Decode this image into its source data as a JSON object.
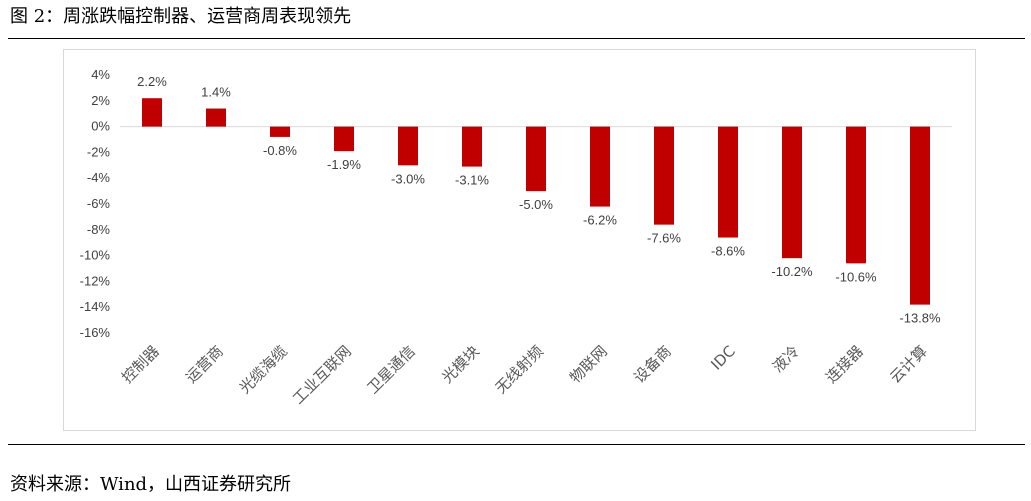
{
  "figure_title": "图 2：周涨跌幅控制器、运营商周表现领先",
  "source_note": "资料来源：Wind，山西证券研究所",
  "colors": {
    "bar": "#c00000",
    "axis": "#d9d9d9",
    "text": "#404040"
  },
  "chart_data": {
    "type": "bar",
    "title": "",
    "xlabel": "",
    "ylabel": "",
    "categories": [
      "控制器",
      "运营商",
      "光缆海缆",
      "工业互联网",
      "卫星通信",
      "光模块",
      "无线射频",
      "物联网",
      "设备商",
      "IDC",
      "液冷",
      "连接器",
      "云计算"
    ],
    "series": [
      {
        "values": [
          2.2,
          1.4,
          -0.8,
          -1.9,
          -3.0,
          -3.1,
          -5.0,
          -6.2,
          -7.6,
          -8.6,
          -10.2,
          -10.6,
          -13.8
        ]
      }
    ],
    "data_labels": [
      "2.2%",
      "1.4%",
      "-0.8%",
      "-1.9%",
      "-3.0%",
      "-3.1%",
      "-5.0%",
      "-6.2%",
      "-7.6%",
      "-8.6%",
      "-10.2%",
      "-10.6%",
      "-13.8%"
    ],
    "ylim": [
      -16,
      4
    ],
    "yticks": [
      4,
      2,
      0,
      -2,
      -4,
      -6,
      -8,
      -10,
      -12,
      -14,
      -16
    ],
    "ytick_labels": [
      "4%",
      "2%",
      "0%",
      "-2%",
      "-4%",
      "-6%",
      "-8%",
      "-10%",
      "-12%",
      "-14%",
      "-16%"
    ],
    "grid": false,
    "legend": "none"
  }
}
